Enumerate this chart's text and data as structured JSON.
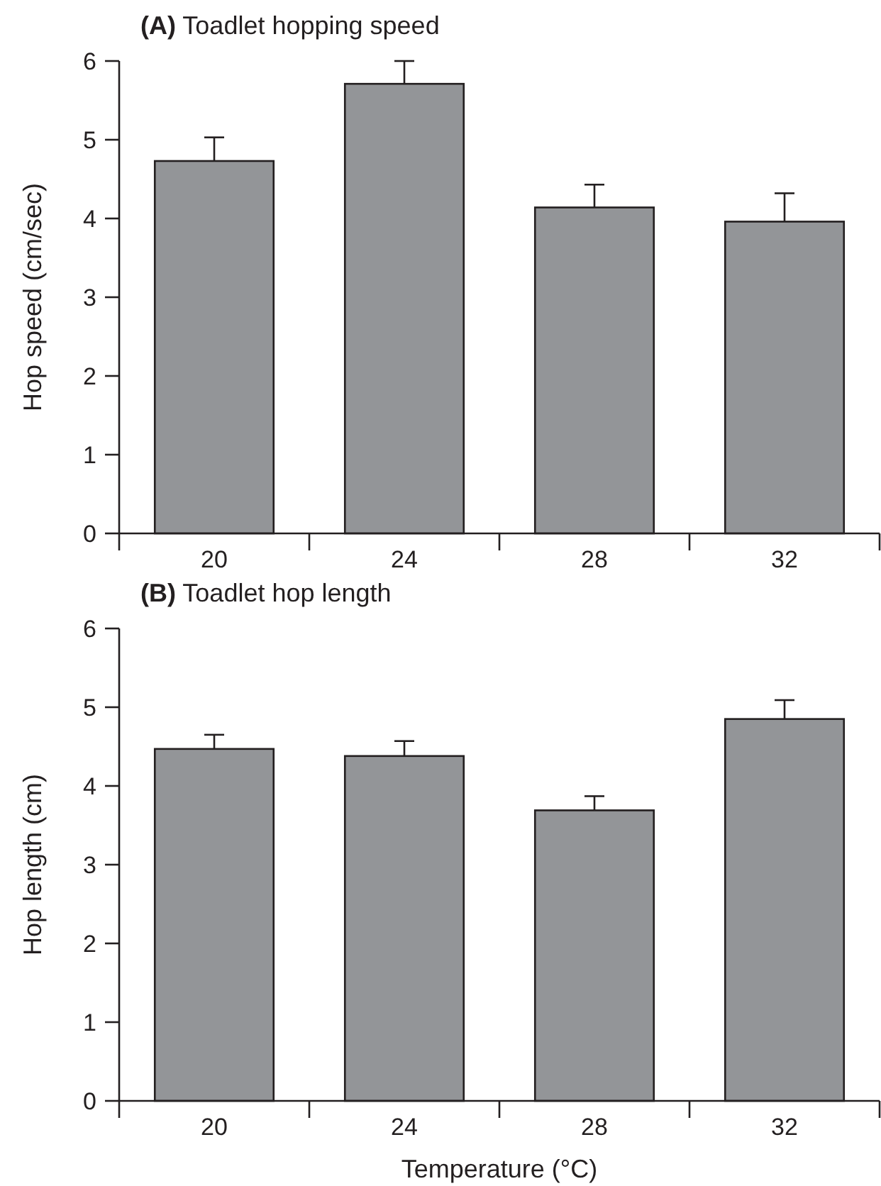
{
  "chart_data": [
    {
      "type": "bar",
      "title": "(A) Toadlet hopping speed",
      "ylabel": "Hop speed (cm/sec)",
      "categories": [
        "20",
        "24",
        "28",
        "32"
      ],
      "values": [
        4.73,
        5.71,
        4.14,
        3.96
      ],
      "errors": [
        [
          4.73,
          5.03
        ],
        [
          5.71,
          6.0
        ],
        [
          4.14,
          4.43
        ],
        [
          3.96,
          4.32
        ]
      ],
      "color": "#939598",
      "ylim": [
        0,
        6
      ],
      "yticks": [
        0,
        1,
        2,
        3,
        4,
        5,
        6
      ]
    },
    {
      "type": "bar",
      "title": "(B) Toadlet hop length",
      "xlabel": "Temperature (°C)",
      "ylabel": "Hop length (cm)",
      "categories": [
        "20",
        "24",
        "28",
        "32"
      ],
      "values": [
        4.47,
        4.38,
        3.69,
        4.85
      ],
      "errors": [
        [
          4.47,
          4.65
        ],
        [
          4.38,
          4.57
        ],
        [
          3.69,
          3.87
        ],
        [
          4.85,
          5.09
        ]
      ],
      "color": "#939598",
      "ylim": [
        0,
        6
      ],
      "yticks": [
        0,
        1,
        2,
        3,
        4,
        5,
        6
      ]
    }
  ]
}
